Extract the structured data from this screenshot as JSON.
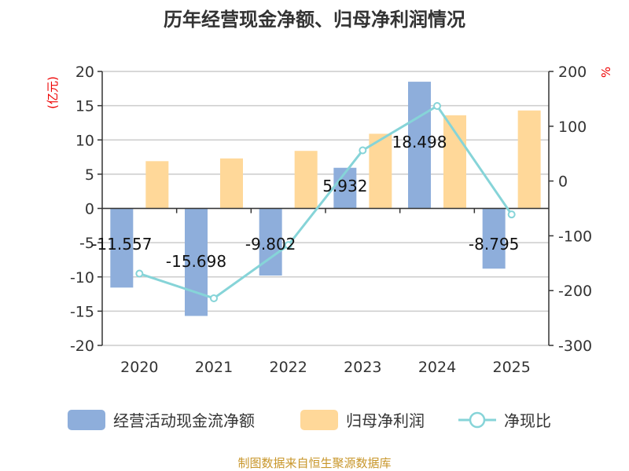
{
  "chart_data": {
    "type": "bar",
    "title": "历年经营现金净额、归母净利润情况",
    "categories": [
      "2020",
      "2021",
      "2022",
      "2023",
      "2024",
      "2025"
    ],
    "y_left": {
      "label": "(亿元)",
      "range": [
        -20,
        20
      ],
      "ticks": [
        -20,
        -15,
        -10,
        -5,
        0,
        5,
        10,
        15,
        20
      ]
    },
    "y_right": {
      "label": "%",
      "range": [
        -300,
        200
      ],
      "ticks": [
        -300,
        -200,
        -100,
        0,
        100,
        200
      ]
    },
    "grid": true,
    "legend_placement": "bottom",
    "series": [
      {
        "name": "经营活动现金流净额",
        "type": "bar",
        "axis": "left",
        "color": "#8eaedb",
        "values": [
          -11.557,
          -15.698,
          -9.802,
          5.932,
          18.498,
          -8.795
        ],
        "labels": [
          "-11.557",
          "-15.698",
          "-9.802",
          "5.932",
          "18.498",
          "-8.795"
        ]
      },
      {
        "name": "归母净利润",
        "type": "bar",
        "axis": "left",
        "color": "#ffd899",
        "values": [
          6.9,
          7.3,
          8.4,
          10.9,
          13.6,
          14.3
        ]
      },
      {
        "name": "净现比",
        "type": "line",
        "axis": "right",
        "color": "#86d4d8",
        "values": [
          -169,
          -214,
          -117,
          56,
          137,
          -61
        ]
      }
    ]
  },
  "source": "制图数据来自恒生聚源数据库"
}
